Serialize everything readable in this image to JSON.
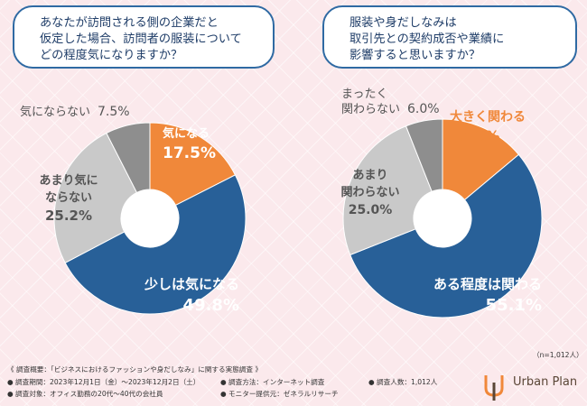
{
  "left_question": [
    "あなたが訪問される側の企業だと",
    "仮定した場合、訪問者の服装について",
    "どの程度気になりますか？"
  ],
  "right_question": [
    "服装や身だしなみは",
    "取引先との契約成否や業績に",
    "影響すると思いますか？"
  ],
  "chart_data": [
    {
      "type": "pie",
      "variant": "donut",
      "title": "あなたが訪問される側の企業だと仮定した場合、訪問者の服装についてどの程度気になりますか？",
      "slices": [
        {
          "label": "気になる",
          "value": 17.5,
          "display": "17.5%",
          "color": "#f0883a"
        },
        {
          "label": "少しは気になる",
          "value": 49.8,
          "display": "49.8%",
          "color": "#286098"
        },
        {
          "label": "あまり気にならない",
          "label_lines": [
            "あまり気に",
            "ならない"
          ],
          "value": 25.2,
          "display": "25.2%",
          "color": "#c9c9c9"
        },
        {
          "label": "気にならない",
          "value": 7.5,
          "display": "7.5%",
          "color": "#8e8e8e"
        }
      ]
    },
    {
      "type": "pie",
      "variant": "donut",
      "title": "服装や身だしなみは取引先との契約成否や業績に影響すると思いますか？",
      "slices": [
        {
          "label": "大きく関わる",
          "value": 13.9,
          "display": "13.9%",
          "color": "#f0883a"
        },
        {
          "label": "ある程度は関わる",
          "value": 55.1,
          "display": "55.1%",
          "color": "#286098"
        },
        {
          "label": "あまり関わらない",
          "label_lines": [
            "あまり",
            "関わらない"
          ],
          "value": 25.0,
          "display": "25.0%",
          "color": "#c9c9c9"
        },
        {
          "label": "まったく関わらない",
          "label_lines": [
            "まったく",
            "関わらない"
          ],
          "value": 6.0,
          "display": "6.0%",
          "color": "#8e8e8e"
        }
      ]
    }
  ],
  "sample_note": "（n=1,012人）",
  "survey": {
    "overview": "《 調査概要：「ビジネスにおけるファッションや身だしなみ」に関する実態調査 》",
    "period": "● 調査期間：2023年12月1日（金）〜2023年12月2日（土）",
    "method": "● 調査方法：インターネット調査",
    "count": "● 調査人数：1,012人",
    "target": "● 調査対象：オフィス勤務の20代〜40代の会社員",
    "provider": "● モニター提供元：ゼネラルリサーチ"
  },
  "logo": {
    "text": "Urban Plan"
  }
}
